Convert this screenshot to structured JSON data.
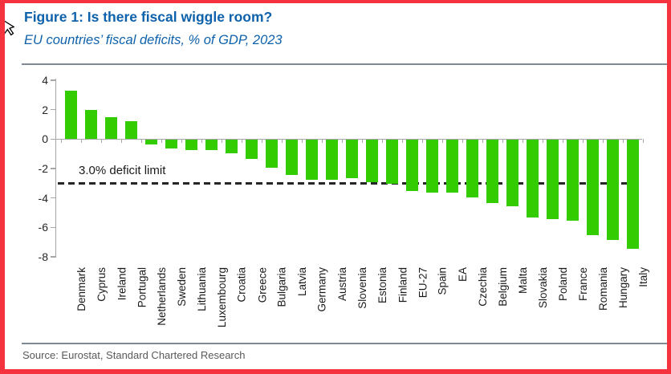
{
  "frame": {
    "border_color": "#f5333f"
  },
  "icons": {
    "cursor": "mouse-pointer-icon"
  },
  "header": {
    "title": "Figure 1: Is there fiscal wiggle room?",
    "subtitle": "EU countries’ fiscal deficits, % of GDP, 2023",
    "title_color": "#0e61ab",
    "rule_color": "#808a94"
  },
  "chart_data": {
    "type": "bar",
    "title": "Figure 1: Is there fiscal wiggle room?",
    "subtitle": "EU countries’ fiscal deficits, % of GDP, 2023",
    "categories": [
      "Denmark",
      "Cyprus",
      "Ireland",
      "Portugal",
      "Netherlands",
      "Sweden",
      "Lithuania",
      "Luxembourg",
      "Croatia",
      "Greece",
      "Bulgaria",
      "Latvia",
      "Germany",
      "Austria",
      "Slovenia",
      "Estonia",
      "Finland",
      "EU-27",
      "Spain",
      "EA",
      "Czechia",
      "Belgium",
      "Malta",
      "Slovakia",
      "Poland",
      "France",
      "Romania",
      "Hungary",
      "Italy"
    ],
    "values": [
      3.3,
      2.0,
      1.5,
      1.2,
      -0.3,
      -0.6,
      -0.7,
      -0.7,
      -0.9,
      -1.3,
      -1.9,
      -2.4,
      -2.7,
      -2.7,
      -2.6,
      -2.9,
      -3.0,
      -3.5,
      -3.6,
      -3.6,
      -3.9,
      -4.3,
      -4.5,
      -5.3,
      -5.4,
      -5.5,
      -6.5,
      -6.8,
      -7.4
    ],
    "xlabel": "",
    "ylabel": "",
    "ylim": [
      -8,
      4
    ],
    "yticks": [
      4,
      2,
      0,
      -2,
      -4,
      -6,
      -8
    ],
    "grid": false,
    "legend": false,
    "bar_color": "#33cc00",
    "axis_color": "#a6a6a6",
    "reference_line": {
      "value": -3.0,
      "label": "3.0% deficit limit",
      "style": "dashed",
      "color": "#262626"
    }
  },
  "footer": {
    "source": "Source: Eurostat, Standard Chartered Research",
    "rule_color": "#808a94"
  }
}
